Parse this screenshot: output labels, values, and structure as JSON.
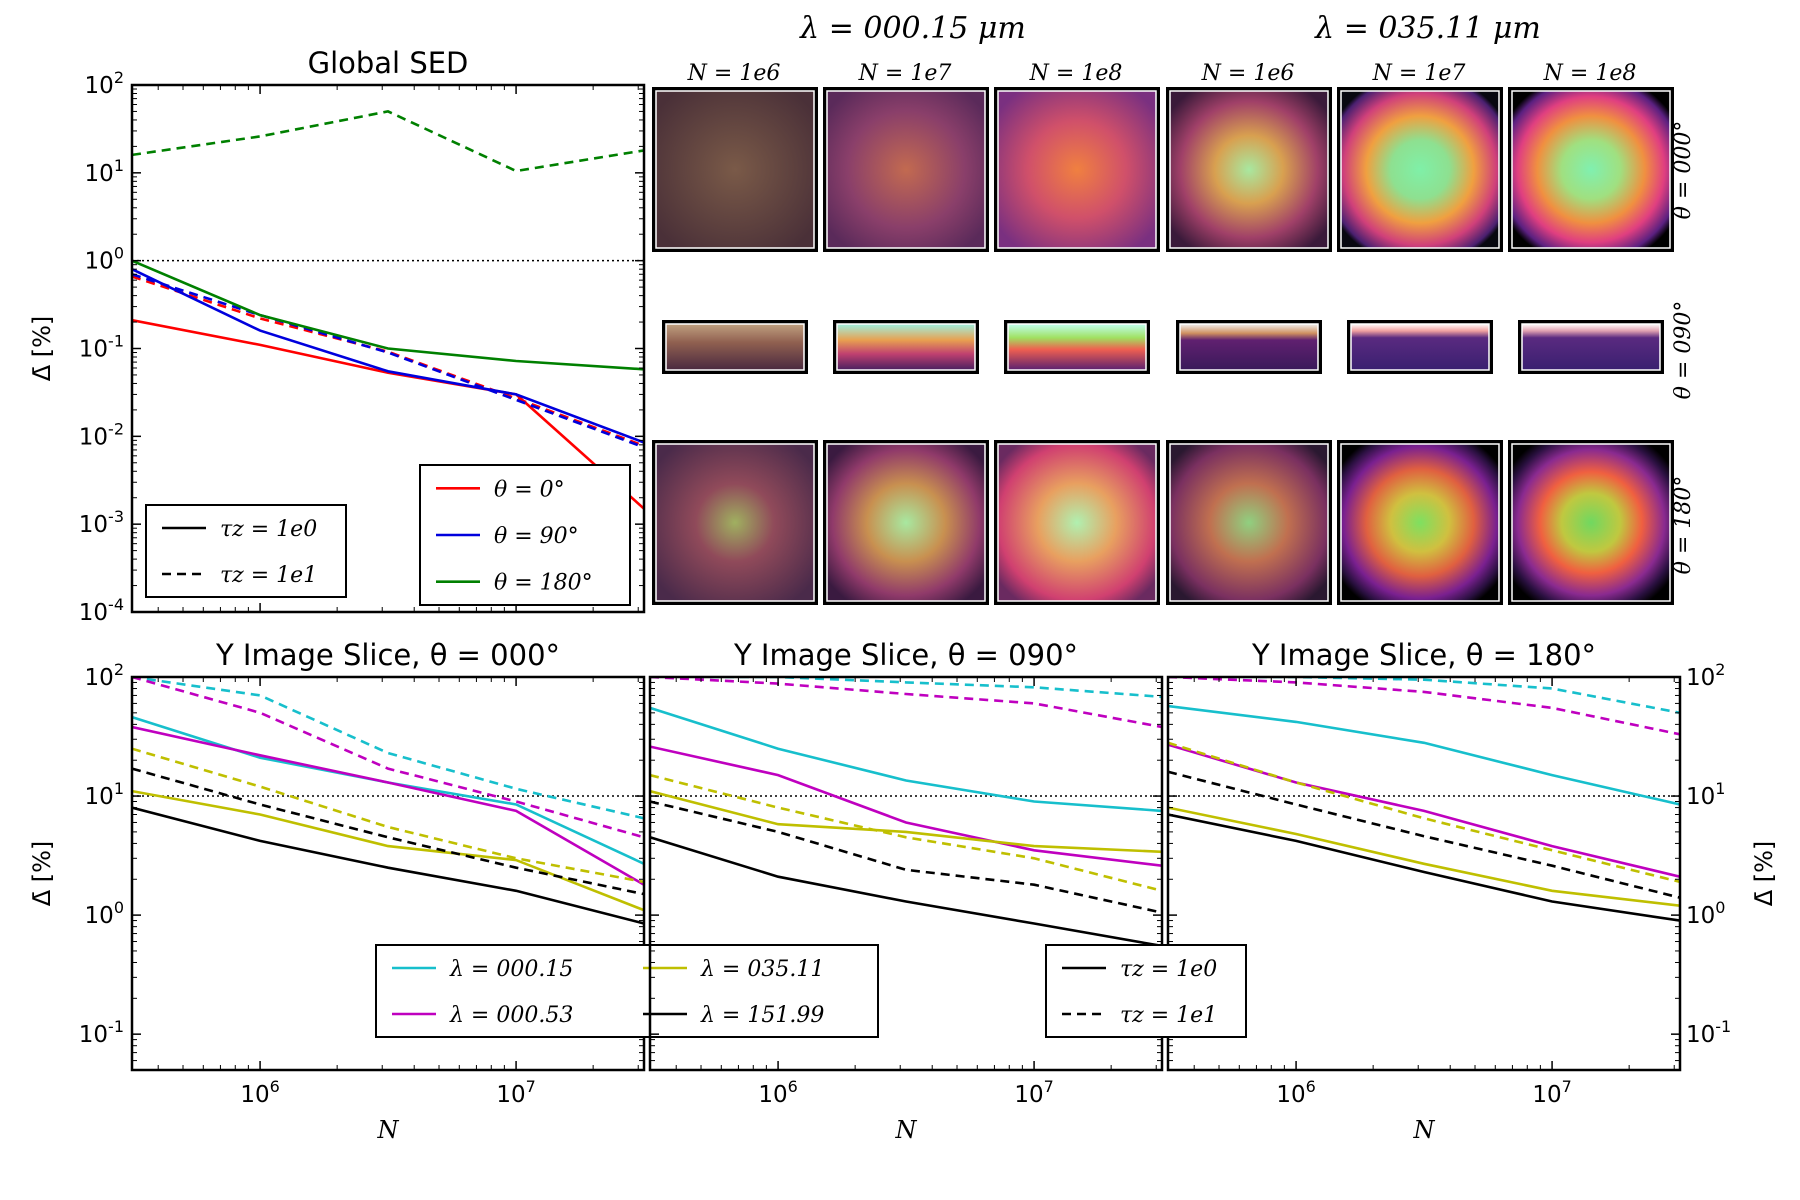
{
  "chart_data": [
    {
      "type": "line",
      "title": "Global SED",
      "xlabel": "",
      "ylabel": "Δ̄ [%]",
      "xscale": "log",
      "yscale": "log",
      "xlim": [
        316000,
        31600000
      ],
      "ylim": [
        0.0001,
        100
      ],
      "yticks": [
        "10^2",
        "10^1",
        "10^0",
        "10^-1",
        "10^-2",
        "10^-3",
        "10^-4"
      ],
      "x": [
        316000,
        1000000,
        3160000,
        10000000,
        31600000
      ],
      "reference_line": 1,
      "series": [
        {
          "name": "θ=0° τz=1e0",
          "color": "#ff0000",
          "dash": false,
          "values": [
            0.21,
            0.11,
            0.053,
            0.03,
            0.0015
          ]
        },
        {
          "name": "θ=0° τz=1e1",
          "color": "#ff0000",
          "dash": true,
          "values": [
            0.66,
            0.22,
            0.092,
            0.027,
            0.0078
          ]
        },
        {
          "name": "θ=90° τz=1e0",
          "color": "#0000dd",
          "dash": false,
          "values": [
            0.8,
            0.16,
            0.055,
            0.03,
            0.0085
          ]
        },
        {
          "name": "θ=90° τz=1e1",
          "color": "#0000dd",
          "dash": true,
          "values": [
            0.7,
            0.24,
            0.09,
            0.026,
            0.0075
          ]
        },
        {
          "name": "θ=180° τz=1e0",
          "color": "#008000",
          "dash": false,
          "values": [
            1.0,
            0.24,
            0.1,
            0.072,
            0.058
          ]
        },
        {
          "name": "θ=180° τz=1e1",
          "color": "#008000",
          "dash": true,
          "values": [
            16,
            26,
            50,
            10.5,
            18
          ]
        }
      ],
      "legend_tau": {
        "position": "lower-left",
        "entries": [
          {
            "label": "τz = 1e0",
            "dash": false
          },
          {
            "label": "τz = 1e1",
            "dash": true
          }
        ]
      },
      "legend_theta": {
        "position": "lower-right",
        "entries": [
          {
            "label": "θ = 0°",
            "color": "#ff0000"
          },
          {
            "label": "θ = 90°",
            "color": "#0000dd"
          },
          {
            "label": "θ = 180°",
            "color": "#008000"
          }
        ]
      }
    },
    {
      "type": "image_grid",
      "column_groups": [
        "λ = 000.15 μm",
        "λ = 035.11 μm"
      ],
      "column_labels": [
        "N = 1e6",
        "N = 1e7",
        "N = 1e8",
        "N = 1e6",
        "N = 1e7",
        "N = 1e8"
      ],
      "row_labels": [
        "θ = 000°",
        "θ = 090°",
        "θ = 180°"
      ]
    },
    {
      "type": "line",
      "title": "Y Image Slice, θ = 000°",
      "xlabel": "N",
      "ylabel": "Δ̄ [%]",
      "xscale": "log",
      "yscale": "log",
      "xlim": [
        316000,
        31600000
      ],
      "ylim": [
        0.05,
        100
      ],
      "x": [
        316000,
        1000000,
        3160000,
        10000000,
        31600000
      ],
      "reference_line": 10,
      "series": [
        {
          "name": "λ=000.15 τz=1e0",
          "color": "#17bfcc",
          "dash": false,
          "values": [
            46,
            21,
            13,
            8.5,
            2.7
          ]
        },
        {
          "name": "λ=000.15 τz=1e1",
          "color": "#17bfcc",
          "dash": true,
          "values": [
            100,
            70,
            23,
            11.5,
            6.5
          ]
        },
        {
          "name": "λ=000.53 τz=1e0",
          "color": "#bf00bf",
          "dash": false,
          "values": [
            38,
            22,
            13,
            7.5,
            1.8
          ]
        },
        {
          "name": "λ=000.53 τz=1e1",
          "color": "#bf00bf",
          "dash": true,
          "values": [
            100,
            50,
            17,
            9,
            4.5
          ]
        },
        {
          "name": "λ=035.11 τz=1e0",
          "color": "#bfbf00",
          "dash": false,
          "values": [
            11,
            7,
            3.8,
            2.9,
            1.1
          ]
        },
        {
          "name": "λ=035.11 τz=1e1",
          "color": "#bfbf00",
          "dash": true,
          "values": [
            25,
            12,
            5.5,
            3,
            1.9
          ]
        },
        {
          "name": "λ=151.99 τz=1e0",
          "color": "#000000",
          "dash": false,
          "values": [
            8,
            4.2,
            2.5,
            1.6,
            0.85
          ]
        },
        {
          "name": "λ=151.99 τz=1e1",
          "color": "#000000",
          "dash": true,
          "values": [
            17,
            8.5,
            4.5,
            2.5,
            1.5
          ]
        }
      ],
      "legend_lambda": {
        "position": "lower-center",
        "entries": [
          {
            "label": "λ = 000.15",
            "color": "#17bfcc"
          },
          {
            "label": "λ = 000.53",
            "color": "#bf00bf"
          },
          {
            "label": "λ = 035.11",
            "color": "#bfbf00"
          },
          {
            "label": "λ = 151.99",
            "color": "#000000"
          }
        ]
      }
    },
    {
      "type": "line",
      "title": "Y Image Slice, θ = 090°",
      "xlabel": "N",
      "ylabel": "",
      "xscale": "log",
      "yscale": "log",
      "xlim": [
        316000,
        31600000
      ],
      "ylim": [
        0.05,
        100
      ],
      "x": [
        316000,
        1000000,
        3160000,
        10000000,
        31600000
      ],
      "reference_line": 10,
      "series": [
        {
          "name": "λ=000.15 τz=1e0",
          "color": "#17bfcc",
          "dash": false,
          "values": [
            55,
            25,
            13.5,
            9,
            7.5
          ]
        },
        {
          "name": "λ=000.15 τz=1e1",
          "color": "#17bfcc",
          "dash": true,
          "values": [
            100,
            100,
            90,
            82,
            68
          ]
        },
        {
          "name": "λ=000.53 τz=1e0",
          "color": "#bf00bf",
          "dash": false,
          "values": [
            26,
            15,
            6,
            3.5,
            2.6
          ]
        },
        {
          "name": "λ=000.53 τz=1e1",
          "color": "#bf00bf",
          "dash": true,
          "values": [
            100,
            88,
            72,
            60,
            38
          ]
        },
        {
          "name": "λ=035.11 τz=1e0",
          "color": "#bfbf00",
          "dash": false,
          "values": [
            11,
            5.8,
            5,
            3.8,
            3.4
          ]
        },
        {
          "name": "λ=035.11 τz=1e1",
          "color": "#bfbf00",
          "dash": true,
          "values": [
            15,
            8,
            4.5,
            3,
            1.6
          ]
        },
        {
          "name": "λ=151.99 τz=1e0",
          "color": "#000000",
          "dash": false,
          "values": [
            4.5,
            2.1,
            1.3,
            0.85,
            0.55
          ]
        },
        {
          "name": "λ=151.99 τz=1e1",
          "color": "#000000",
          "dash": true,
          "values": [
            9,
            5,
            2.4,
            1.8,
            1.05
          ]
        }
      ]
    },
    {
      "type": "line",
      "title": "Y Image Slice, θ = 180°",
      "xlabel": "N",
      "ylabel": "Δ̄ [%]",
      "xscale": "log",
      "yscale": "log",
      "xlim": [
        316000,
        31600000
      ],
      "ylim": [
        0.05,
        100
      ],
      "x": [
        316000,
        1000000,
        3160000,
        10000000,
        31600000
      ],
      "reference_line": 10,
      "series": [
        {
          "name": "λ=000.15 τz=1e0",
          "color": "#17bfcc",
          "dash": false,
          "values": [
            57,
            42,
            28,
            15,
            8.5
          ]
        },
        {
          "name": "λ=000.15 τz=1e1",
          "color": "#17bfcc",
          "dash": true,
          "values": [
            100,
            100,
            95,
            80,
            50
          ]
        },
        {
          "name": "λ=000.53 τz=1e0",
          "color": "#bf00bf",
          "dash": false,
          "values": [
            27,
            13,
            7.5,
            3.8,
            2.1
          ]
        },
        {
          "name": "λ=000.53 τz=1e1",
          "color": "#bf00bf",
          "dash": true,
          "values": [
            100,
            90,
            75,
            55,
            33
          ]
        },
        {
          "name": "λ=035.11 τz=1e0",
          "color": "#bfbf00",
          "dash": false,
          "values": [
            8,
            4.8,
            2.7,
            1.6,
            1.2
          ]
        },
        {
          "name": "λ=035.11 τz=1e1",
          "color": "#bfbf00",
          "dash": true,
          "values": [
            28,
            13,
            6.5,
            3.5,
            1.9
          ]
        },
        {
          "name": "λ=151.99 τz=1e0",
          "color": "#000000",
          "dash": false,
          "values": [
            7,
            4.2,
            2.3,
            1.3,
            0.9
          ]
        },
        {
          "name": "λ=151.99 τz=1e1",
          "color": "#000000",
          "dash": true,
          "values": [
            16,
            8.5,
            4.6,
            2.6,
            1.4
          ]
        }
      ],
      "legend_tau": {
        "position": "lower-left",
        "entries": [
          {
            "label": "τz = 1e0",
            "dash": false
          },
          {
            "label": "τz = 1e1",
            "dash": true
          }
        ]
      }
    }
  ]
}
